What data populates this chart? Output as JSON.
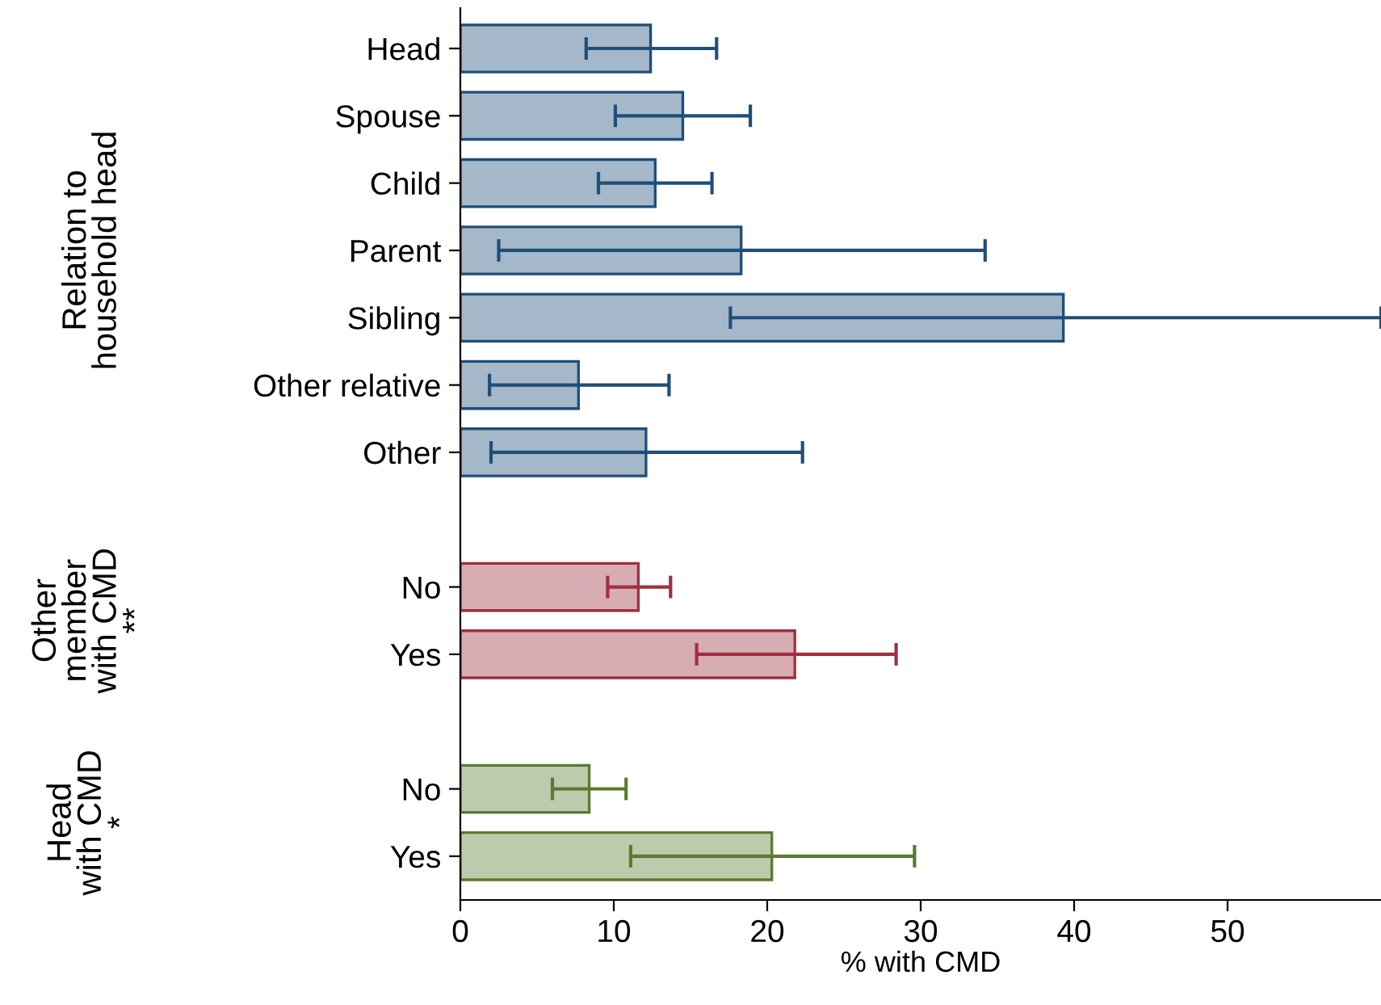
{
  "chart_data": {
    "type": "bar",
    "orientation": "horizontal",
    "xlabel": "% with CMD",
    "categories": [
      "Head",
      "Spouse",
      "Child",
      "Parent",
      "Sibling",
      "Other relative",
      "Other",
      null,
      "No",
      "Yes",
      null,
      "No",
      "Yes"
    ],
    "series": [
      {
        "color": "#1f4e79",
        "values": [
          12.4,
          14.5,
          12.7,
          18.3,
          39.3,
          7.7,
          12.1,
          null,
          null,
          null,
          null,
          null,
          null
        ],
        "errors": [
          [
            8.2,
            16.7
          ],
          [
            10.1,
            18.9
          ],
          [
            9.0,
            16.4
          ],
          [
            2.5,
            34.2
          ],
          [
            17.6,
            60
          ],
          [
            1.9,
            13.6
          ],
          [
            2.0,
            22.3
          ],
          null,
          null,
          null,
          null,
          null,
          null
        ]
      },
      {
        "color": "#9e3040",
        "values": [
          null,
          null,
          null,
          null,
          null,
          null,
          null,
          null,
          11.6,
          21.8,
          null,
          null,
          null
        ],
        "errors": [
          null,
          null,
          null,
          null,
          null,
          null,
          null,
          null,
          [
            9.6,
            13.7
          ],
          [
            15.4,
            28.4
          ],
          null,
          null,
          null
        ]
      },
      {
        "color": "#5a7a30",
        "values": [
          null,
          null,
          null,
          null,
          null,
          null,
          null,
          null,
          null,
          null,
          null,
          8.4,
          20.3
        ],
        "errors": [
          null,
          null,
          null,
          null,
          null,
          null,
          null,
          null,
          null,
          null,
          null,
          [
            6.0,
            10.8
          ],
          [
            11.1,
            29.6
          ]
        ]
      }
    ],
    "xlim": [
      0,
      60
    ],
    "xticks": [
      0,
      10,
      20,
      30,
      40,
      50
    ],
    "annotations": [
      "Relation to\nhousehold head",
      "Other\nmember\nwith CMD\n**",
      "Head\nwith CMD\n*"
    ],
    "grid": false,
    "legend": false
  }
}
